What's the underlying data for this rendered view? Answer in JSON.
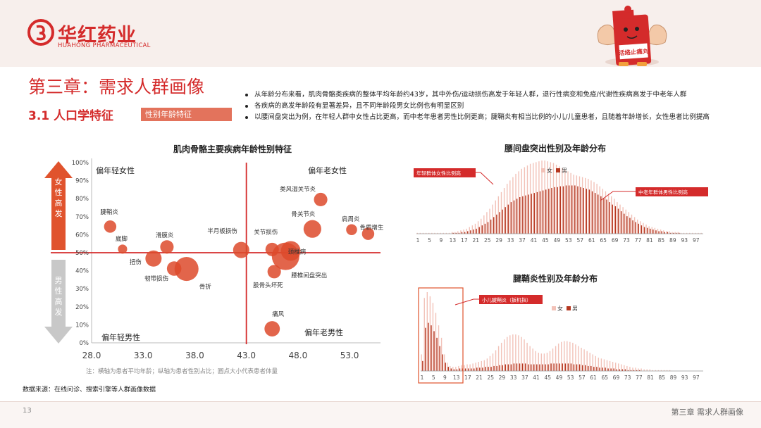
{
  "header": {
    "brand_name": "华红药业",
    "brand_en": "HUAHONG PHARMACEUTICAL",
    "mascot_label": "活络止痛丸"
  },
  "chapter_title": "第三章：需求人群画像",
  "section_title": "3.1 人口学特征",
  "tag_label": "性别年龄特征",
  "bullets": [
    "从年龄分布来看，肌肉骨骼类疾病的整体平均年龄约43岁，其中外伤/运动损伤高发于年轻人群，退行性病变和免疫/代谢性疾病高发于中老年人群",
    "各疾病的高发年龄段有显著差异，且不同年龄段男女比例也有明显区别",
    "以腰间盘突出为例，在年轻人群中女性占比更高，而中老年患者男性比例更高；腱鞘炎有相当比例的小儿/儿童患者，且随着年龄增长，女性患者比例提高"
  ],
  "note": "注：横轴为患者平均年龄；纵轴为患者性别占比；圆点大小代表患者体量",
  "source": "数据来源：在线问诊、搜索引擎等人群画像数据",
  "footer": {
    "page": "13",
    "chapter": "第三章 需求人群画像"
  },
  "colors": {
    "accent": "#d42b2b",
    "bubble": "#dd4a2c",
    "female_bar": "#f2c2b8",
    "male_bar": "#b5361f",
    "gray_arrow": "#c8c8c8"
  },
  "chart_data": [
    {
      "type": "scatter",
      "title": "肌肉骨骼主要疾病年龄性别特征",
      "xlabel": "",
      "ylabel": "",
      "xlim": [
        28,
        56
      ],
      "ylim": [
        0,
        100
      ],
      "x_ticks": [
        "28.0",
        "33.0",
        "38.0",
        "43.0",
        "48.0",
        "53.0"
      ],
      "y_ticks": [
        "0%",
        "10%",
        "20%",
        "30%",
        "40%",
        "50%",
        "60%",
        "70%",
        "80%",
        "90%",
        "100%"
      ],
      "divider": {
        "x": 43,
        "y": 50
      },
      "quadrant_labels": {
        "top_left": "偏年轻女性",
        "top_right": "偏年老女性",
        "bottom_left": "偏年轻男性",
        "bottom_right": "偏年老男性"
      },
      "y_arrow_labels": {
        "up": "女性高发",
        "down": "男性高发"
      },
      "points": [
        {
          "label": "腱鞘炎",
          "x": 29.8,
          "y": 64.5,
          "size": 3
        },
        {
          "label": "崴脚",
          "x": 31.0,
          "y": 52.0,
          "size": 1
        },
        {
          "label": "滑膜炎",
          "x": 35.3,
          "y": 53.2,
          "size": 4
        },
        {
          "label": "扭伤",
          "x": 34.0,
          "y": 46.8,
          "size": 7
        },
        {
          "label": "韧带损伤",
          "x": 36.0,
          "y": 41.2,
          "size": 5
        },
        {
          "label": "骨折",
          "x": 37.2,
          "y": 41.0,
          "size": 20
        },
        {
          "label": "半月板损伤",
          "x": 42.5,
          "y": 51.5,
          "size": 7
        },
        {
          "label": "关节损伤",
          "x": 45.5,
          "y": 51.8,
          "size": 4
        },
        {
          "label": "类风湿关节炎",
          "x": 50.2,
          "y": 79.5,
          "size": 4
        },
        {
          "label": "骨关节炎",
          "x": 49.4,
          "y": 63.2,
          "size": 9
        },
        {
          "label": "颈椎病",
          "x": 47.3,
          "y": 51.0,
          "size": 12
        },
        {
          "label": "腰椎间盘突出",
          "x": 46.8,
          "y": 48.0,
          "size": 28
        },
        {
          "label": "股骨头坏死",
          "x": 45.7,
          "y": 39.5,
          "size": 4
        },
        {
          "label": "肩周炎",
          "x": 53.2,
          "y": 62.8,
          "size": 2
        },
        {
          "label": "骨质增生",
          "x": 54.8,
          "y": 60.5,
          "size": 3
        },
        {
          "label": "痛风",
          "x": 45.5,
          "y": 7.8,
          "size": 6
        }
      ]
    },
    {
      "type": "bar",
      "title": "腰间盘突出性别及年龄分布",
      "legend": [
        "女",
        "男"
      ],
      "x_ticks": [
        "1",
        "5",
        "9",
        "13",
        "17",
        "21",
        "25",
        "29",
        "33",
        "37",
        "41",
        "45",
        "49",
        "53",
        "57",
        "61",
        "65",
        "69",
        "73",
        "77",
        "81",
        "85",
        "89",
        "93",
        "97"
      ],
      "x_range": [
        1,
        99
      ],
      "annotations": [
        "年轻群体女性比例高",
        "中老年群体男性比例高"
      ],
      "series": [
        {
          "name": "女",
          "values": [
            1,
            1,
            1,
            1,
            1,
            1,
            1,
            1,
            1,
            1,
            1,
            1,
            2,
            2,
            3,
            4,
            5,
            6,
            8,
            10,
            12,
            15,
            18,
            22,
            26,
            30,
            35,
            40,
            45,
            50,
            55,
            60,
            64,
            68,
            72,
            75,
            78,
            80,
            82,
            84,
            85,
            86,
            87,
            88,
            88,
            87,
            86,
            85,
            83,
            81,
            79,
            77,
            75,
            73,
            71,
            70,
            69,
            68,
            67,
            66,
            64,
            62,
            60,
            57,
            54,
            51,
            48,
            45,
            42,
            38,
            35,
            32,
            29,
            26,
            23,
            20,
            17,
            15,
            13,
            11,
            9,
            8,
            7,
            6,
            5,
            4,
            3,
            3,
            2,
            2,
            2,
            1,
            1,
            1,
            1,
            1,
            1,
            1,
            1
          ]
        },
        {
          "name": "男",
          "values": [
            0,
            0,
            0,
            0,
            0,
            0,
            0,
            0,
            0,
            0,
            0,
            0,
            1,
            1,
            1,
            2,
            2,
            3,
            4,
            5,
            6,
            8,
            10,
            12,
            14,
            17,
            20,
            23,
            26,
            29,
            32,
            35,
            38,
            40,
            42,
            44,
            45,
            46,
            47,
            48,
            49,
            50,
            51,
            52,
            53,
            54,
            55,
            56,
            56,
            57,
            57,
            58,
            58,
            58,
            58,
            57,
            56,
            55,
            54,
            53,
            51,
            49,
            47,
            45,
            43,
            41,
            38,
            35,
            33,
            30,
            27,
            24,
            21,
            19,
            16,
            14,
            12,
            10,
            8,
            7,
            6,
            5,
            4,
            3,
            3,
            2,
            2,
            1,
            1,
            1,
            1,
            0,
            0,
            0,
            0,
            0,
            0,
            0,
            0
          ]
        }
      ]
    },
    {
      "type": "bar",
      "title": "腱鞘炎性别及年龄分布",
      "legend": [
        "女",
        "男"
      ],
      "x_ticks": [
        "1",
        "5",
        "9",
        "13",
        "17",
        "21",
        "25",
        "29",
        "33",
        "37",
        "41",
        "45",
        "49",
        "53",
        "57",
        "61",
        "65",
        "69",
        "73",
        "77",
        "81",
        "85",
        "89",
        "93",
        "97"
      ],
      "x_range": [
        1,
        99
      ],
      "annotations": [
        "小儿腱鞘炎（扳机指）"
      ],
      "series": [
        {
          "name": "女",
          "values": [
            20,
            88,
            95,
            90,
            82,
            70,
            55,
            40,
            20,
            10,
            6,
            5,
            5,
            6,
            7,
            7,
            8,
            8,
            9,
            10,
            11,
            12,
            13,
            15,
            18,
            21,
            25,
            30,
            34,
            38,
            41,
            43,
            44,
            44,
            43,
            41,
            38,
            34,
            30,
            27,
            24,
            22,
            21,
            21,
            22,
            24,
            27,
            30,
            33,
            35,
            36,
            36,
            35,
            34,
            32,
            30,
            28,
            26,
            24,
            22,
            20,
            18,
            16,
            15,
            14,
            13,
            12,
            11,
            10,
            9,
            8,
            7,
            6,
            5,
            4,
            4,
            3,
            3,
            2,
            2,
            2,
            1,
            1,
            1,
            1,
            1,
            1,
            1,
            0,
            0,
            0,
            0,
            0,
            0,
            0,
            0,
            0,
            0,
            0
          ]
        },
        {
          "name": "男",
          "values": [
            12,
            52,
            58,
            55,
            48,
            40,
            30,
            20,
            10,
            5,
            3,
            2,
            2,
            3,
            3,
            3,
            3,
            3,
            3,
            4,
            4,
            4,
            5,
            5,
            5,
            6,
            6,
            7,
            7,
            8,
            8,
            8,
            9,
            9,
            9,
            9,
            9,
            8,
            8,
            8,
            8,
            8,
            8,
            8,
            8,
            9,
            9,
            9,
            9,
            9,
            9,
            9,
            9,
            8,
            8,
            8,
            7,
            7,
            6,
            6,
            5,
            5,
            4,
            4,
            4,
            3,
            3,
            3,
            2,
            2,
            2,
            2,
            1,
            1,
            1,
            1,
            1,
            0,
            0,
            0,
            0,
            0,
            0,
            0,
            0,
            0,
            0,
            0,
            0,
            0,
            0,
            0,
            0,
            0,
            0,
            0,
            0,
            0,
            0
          ]
        }
      ]
    }
  ]
}
